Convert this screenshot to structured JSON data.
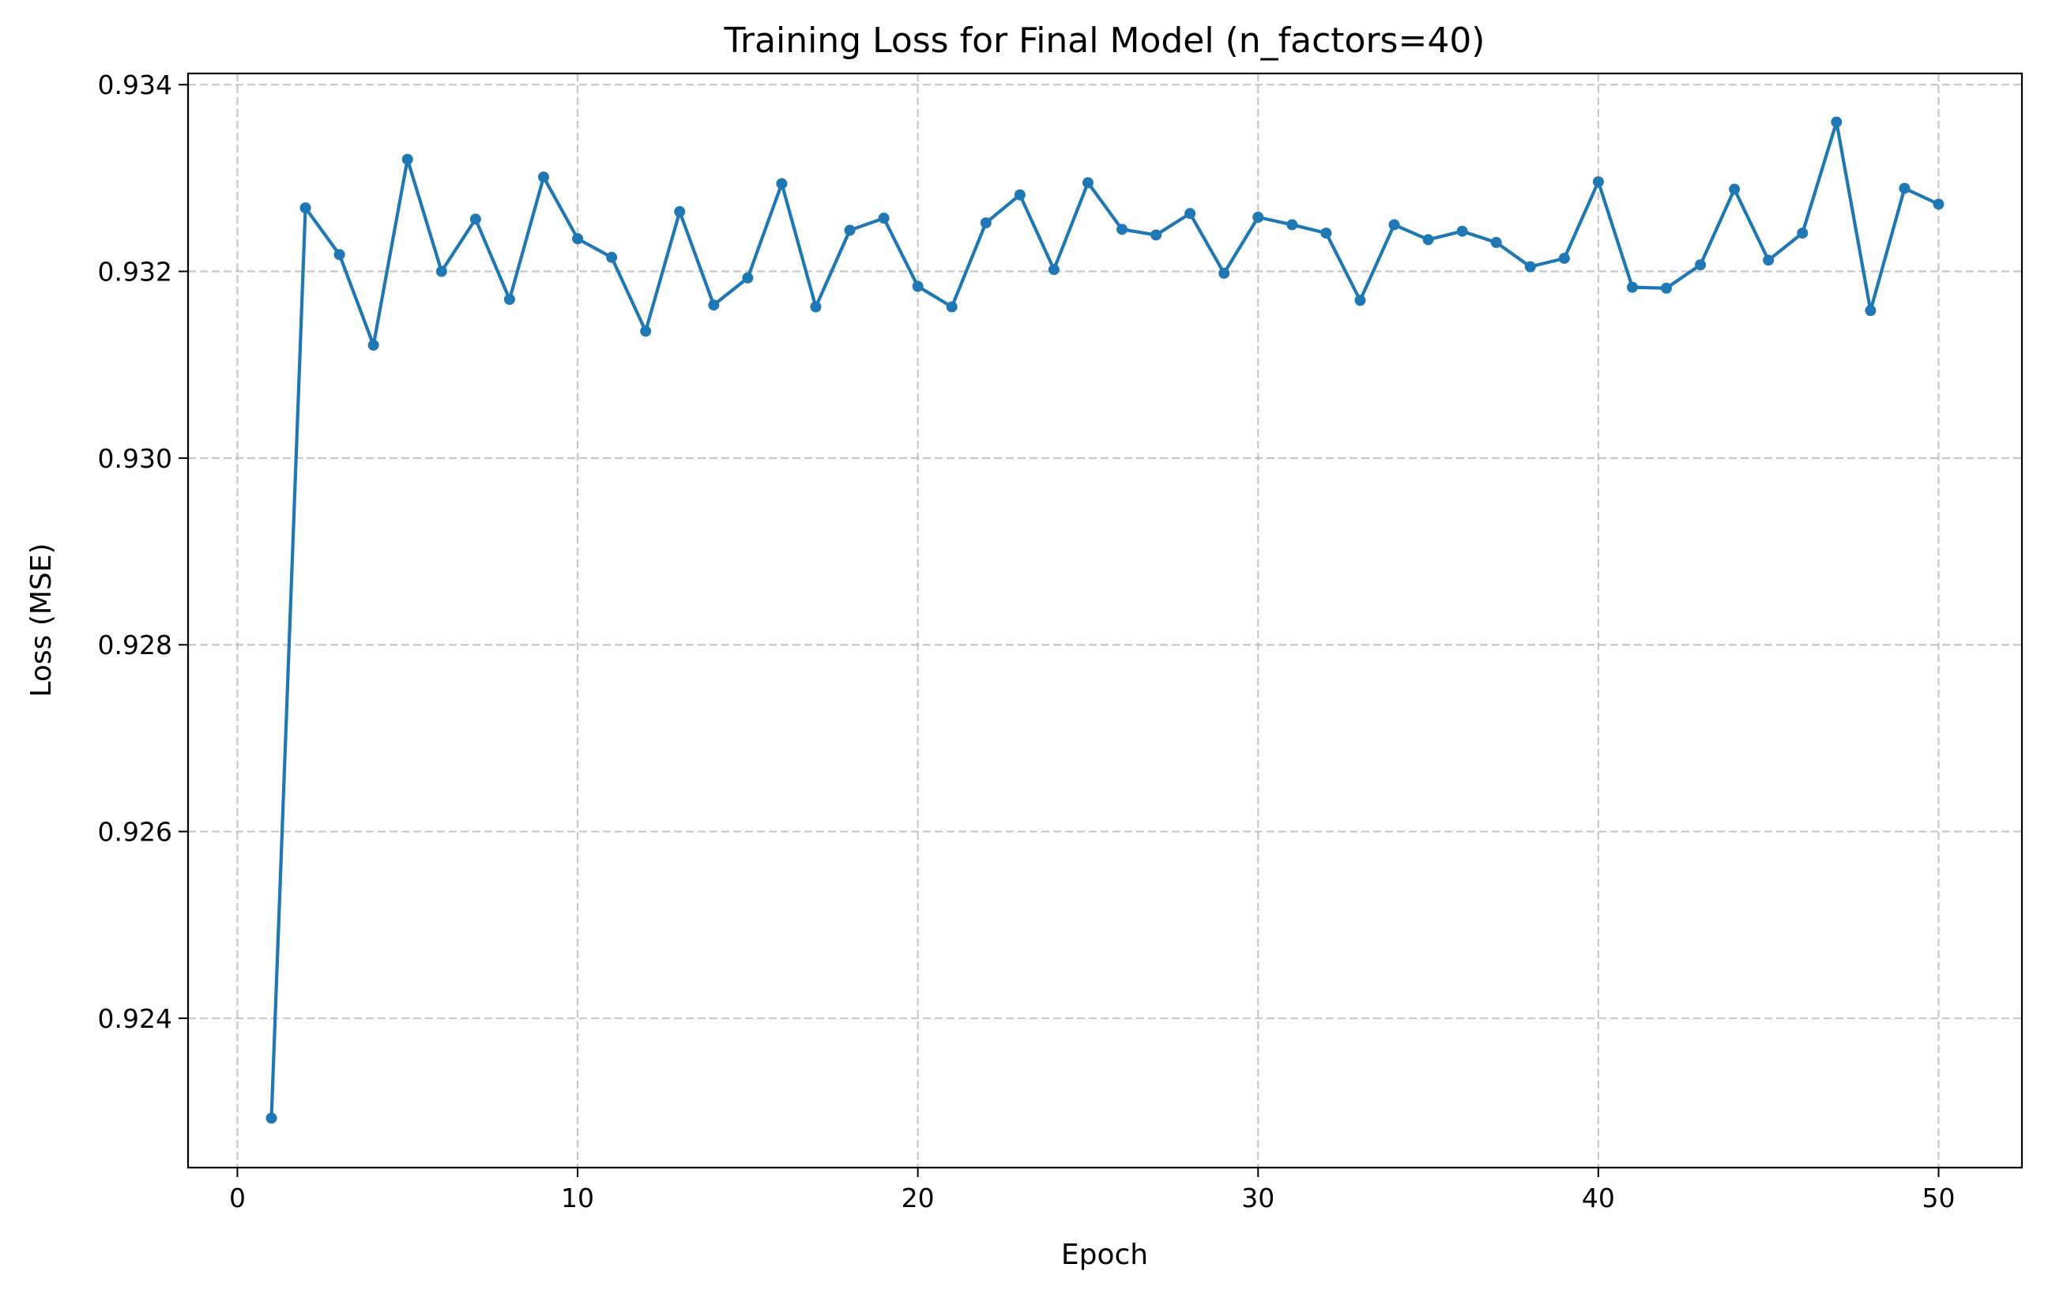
{
  "chart_data": {
    "type": "line",
    "title": "Training Loss for Final Model (n_factors=40)",
    "xlabel": "Epoch",
    "ylabel": "Loss (MSE)",
    "xlim": [
      -1.45,
      52.45
    ],
    "ylim": [
      0.9224,
      0.93412
    ],
    "xticks": [
      0,
      10,
      20,
      30,
      40,
      50
    ],
    "xtick_labels": [
      "0",
      "10",
      "20",
      "30",
      "40",
      "50"
    ],
    "yticks": [
      0.924,
      0.926,
      0.928,
      0.93,
      0.932,
      0.934
    ],
    "ytick_labels": [
      "0.924",
      "0.926",
      "0.928",
      "0.930",
      "0.932",
      "0.934"
    ],
    "grid": true,
    "grid_style": "dashed",
    "legend": "none",
    "series": [
      {
        "color": "#1f77b4",
        "marker": "circle",
        "x": [
          1,
          2,
          3,
          4,
          5,
          6,
          7,
          8,
          9,
          10,
          11,
          12,
          13,
          14,
          15,
          16,
          17,
          18,
          19,
          20,
          21,
          22,
          23,
          24,
          25,
          26,
          27,
          28,
          29,
          30,
          31,
          32,
          33,
          34,
          35,
          36,
          37,
          38,
          39,
          40,
          41,
          42,
          43,
          44,
          45,
          46,
          47,
          48,
          49,
          50
        ],
        "y": [
          0.92293,
          0.93268,
          0.93218,
          0.93121,
          0.9332,
          0.932,
          0.93256,
          0.9317,
          0.93301,
          0.93235,
          0.93215,
          0.93136,
          0.93264,
          0.93164,
          0.93193,
          0.93294,
          0.93162,
          0.93244,
          0.93257,
          0.93184,
          0.93162,
          0.93252,
          0.93282,
          0.93202,
          0.93295,
          0.93245,
          0.93239,
          0.93262,
          0.93198,
          0.93258,
          0.9325,
          0.93241,
          0.93169,
          0.9325,
          0.93234,
          0.93243,
          0.93231,
          0.93205,
          0.93214,
          0.93296,
          0.93183,
          0.93182,
          0.93207,
          0.93288,
          0.93212,
          0.93241,
          0.9336,
          0.93158,
          0.93289,
          0.93272
        ]
      }
    ]
  }
}
